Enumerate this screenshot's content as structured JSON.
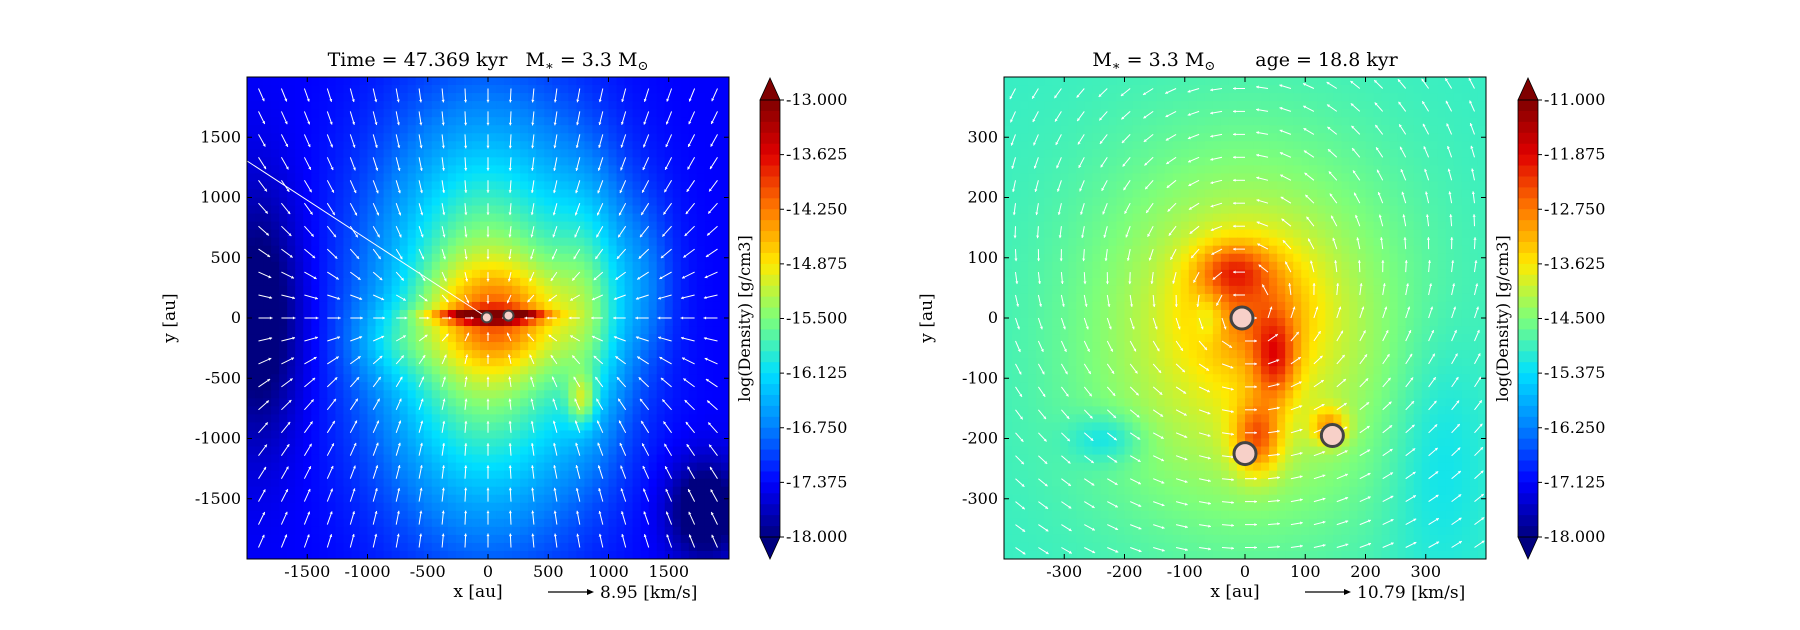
{
  "colormap": [
    "#00007f",
    "#0000ff",
    "#0080ff",
    "#00e0ff",
    "#7dff7a",
    "#ffea00",
    "#ff7a00",
    "#e00000",
    "#7f0000"
  ],
  "chart_data": [
    {
      "type": "heatmap",
      "title": "Time = 47.369 kyr    M$_*$ = 3.3 M$_\\odot$",
      "title_parts": [
        "Time = 47.369 kyr",
        "M",
        "∗",
        " = 3.3 M",
        "⊙"
      ],
      "xlabel": "x [au]",
      "ylabel": "y [au]",
      "xlim": [
        -2000,
        2000
      ],
      "ylim": [
        -2000,
        2000
      ],
      "xticks": [
        -1500,
        -1000,
        -500,
        0,
        500,
        1000,
        1500
      ],
      "yticks": [
        -1500,
        -1000,
        -500,
        0,
        500,
        1000,
        1500
      ],
      "colorbar": {
        "label": "log(Density) [g/cm3]",
        "min": -18.0,
        "max": -13.0,
        "ticks": [
          "-13.000",
          "-13.625",
          "-14.250",
          "-14.875",
          "-15.500",
          "-16.125",
          "-16.750",
          "-17.375",
          "-18.000"
        ]
      },
      "quiver_key": {
        "value": 8.95,
        "label": "8.95 [km/s]"
      },
      "stars": [
        {
          "x": -10,
          "y": 5
        },
        {
          "x": 170,
          "y": 20
        }
      ],
      "field": {
        "background": -17.4,
        "blobs": [
          {
            "x": 0,
            "y": 0,
            "sx": 900,
            "sy": 1600,
            "a": 2.3
          },
          {
            "x": 100,
            "y": 0,
            "sx": 550,
            "sy": 420,
            "a": 1.1
          },
          {
            "x": 850,
            "y": 100,
            "sx": 300,
            "sy": 1000,
            "a": 0.9
          },
          {
            "x": 1300,
            "y": 300,
            "sx": 250,
            "sy": 700,
            "a": 0.4
          },
          {
            "x": -800,
            "y": -200,
            "sx": 350,
            "sy": 300,
            "a": 0.4
          },
          {
            "x": 0,
            "y": 20,
            "sx": 420,
            "sy": 55,
            "a": 1.9
          },
          {
            "x": 150,
            "y": 20,
            "sx": 250,
            "sy": 40,
            "a": 0.9
          },
          {
            "x": 780,
            "y": -680,
            "sx": 110,
            "sy": 200,
            "a": 0.9
          },
          {
            "x": -1900,
            "y": 0,
            "sx": 350,
            "sy": 1000,
            "a": -0.9
          },
          {
            "x": 1800,
            "y": -1600,
            "sx": 300,
            "sy": 400,
            "a": -1.0
          }
        ]
      },
      "velocity": {
        "mode": "infall",
        "scale": 1.0
      }
    },
    {
      "type": "heatmap",
      "title": "M$_*$ = 3.3 M$_\\odot$        age = 18.8 kyr",
      "title_parts": [
        "M",
        "∗",
        " = 3.3 M",
        "⊙",
        "age = 18.8 kyr"
      ],
      "xlabel": "x [au]",
      "ylabel": "y [au]",
      "xlim": [
        -400,
        400
      ],
      "ylim": [
        -400,
        400
      ],
      "xticks": [
        -300,
        -200,
        -100,
        0,
        100,
        200,
        300
      ],
      "yticks": [
        -300,
        -200,
        -100,
        0,
        100,
        200,
        300
      ],
      "colorbar": {
        "label": "log(Density) [g/cm3]",
        "min": -18.0,
        "max": -11.0,
        "ticks": [
          "-11.000",
          "-11.875",
          "-12.750",
          "-13.625",
          "-14.500",
          "-15.375",
          "-16.250",
          "-17.125",
          "-18.000"
        ]
      },
      "quiver_key": {
        "value": 10.79,
        "label": "10.79 [km/s]"
      },
      "stars": [
        {
          "x": -5,
          "y": 0
        },
        {
          "x": 0,
          "y": -225
        },
        {
          "x": 145,
          "y": -195
        }
      ],
      "field": {
        "background": -15.0,
        "blobs": [
          {
            "x": 0,
            "y": -30,
            "sx": 260,
            "sy": 300,
            "a": 1.3
          },
          {
            "x": 10,
            "y": 20,
            "sx": 110,
            "sy": 110,
            "a": 1.0
          },
          {
            "x": -20,
            "y": 80,
            "sx": 60,
            "sy": 45,
            "a": 1.1
          },
          {
            "x": 50,
            "y": -70,
            "sx": 35,
            "sy": 70,
            "a": 1.4
          },
          {
            "x": 20,
            "y": -200,
            "sx": 40,
            "sy": 60,
            "a": 1.6
          },
          {
            "x": 140,
            "y": -180,
            "sx": 30,
            "sy": 30,
            "a": 1.3
          },
          {
            "x": -60,
            "y": 0,
            "sx": 25,
            "sy": 40,
            "a": -0.6
          },
          {
            "x": -230,
            "y": -200,
            "sx": 60,
            "sy": 40,
            "a": -0.6
          },
          {
            "x": 320,
            "y": -220,
            "sx": 80,
            "sy": 200,
            "a": -0.4
          }
        ]
      },
      "velocity": {
        "mode": "swirl",
        "scale": 1.0
      }
    }
  ]
}
